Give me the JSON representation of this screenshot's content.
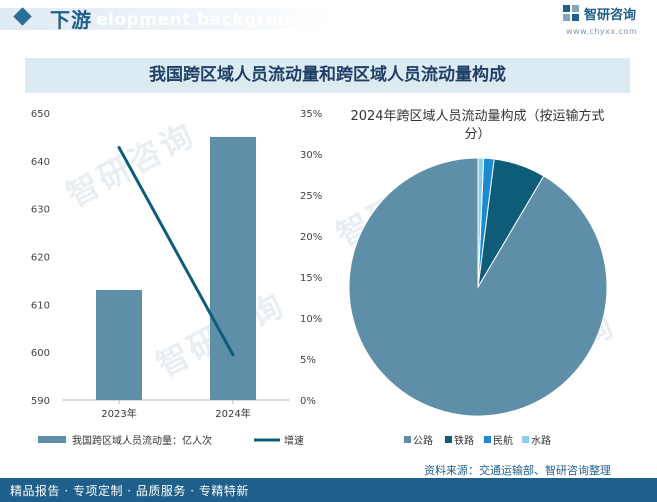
{
  "header": {
    "section_title": "下游",
    "ghost_text": "elopment background",
    "brand": "智研咨询",
    "site": "www.chyxx.com"
  },
  "banner": {
    "title": "我国跨区域人员流动量和跨区域人员流动量构成"
  },
  "watermark": "智研咨询",
  "footer": {
    "tagline": "精品报告 · 专项定制 · 品质服务 · 专精特新",
    "source": "资料来源：交通运输部、智研咨询整理"
  },
  "chart_data": [
    {
      "type": "bar",
      "title": "",
      "categories": [
        "2023年",
        "2024年"
      ],
      "series": [
        {
          "name": "我国跨区域人员流动量：亿人次",
          "type": "bar",
          "axis": "left",
          "values": [
            613,
            645
          ],
          "color": "#5f8fa8"
        },
        {
          "name": "增速",
          "type": "line",
          "axis": "right",
          "values": [
            30.8,
            5.5
          ],
          "unit": "%",
          "color": "#0e5d78"
        }
      ],
      "ylim": [
        590,
        650
      ],
      "yticks": [
        "590",
        "600",
        "610",
        "620",
        "630",
        "640",
        "650"
      ],
      "y2lim": [
        0,
        35
      ],
      "y2ticks": [
        "0%",
        "5%",
        "10%",
        "15%",
        "20%",
        "25%",
        "30%",
        "35%"
      ],
      "legend": "bottom"
    },
    {
      "type": "pie",
      "title": "2024年跨区域人员流动量构成（按运输方式分）",
      "labels": [
        "公路",
        "铁路",
        "民航",
        "水路"
      ],
      "values": [
        91.5,
        6.5,
        1.3,
        0.7
      ],
      "colors": [
        "#5f8fa8",
        "#0e5d78",
        "#1b8bd1",
        "#8ccfe8"
      ],
      "legend": "bottom"
    }
  ]
}
